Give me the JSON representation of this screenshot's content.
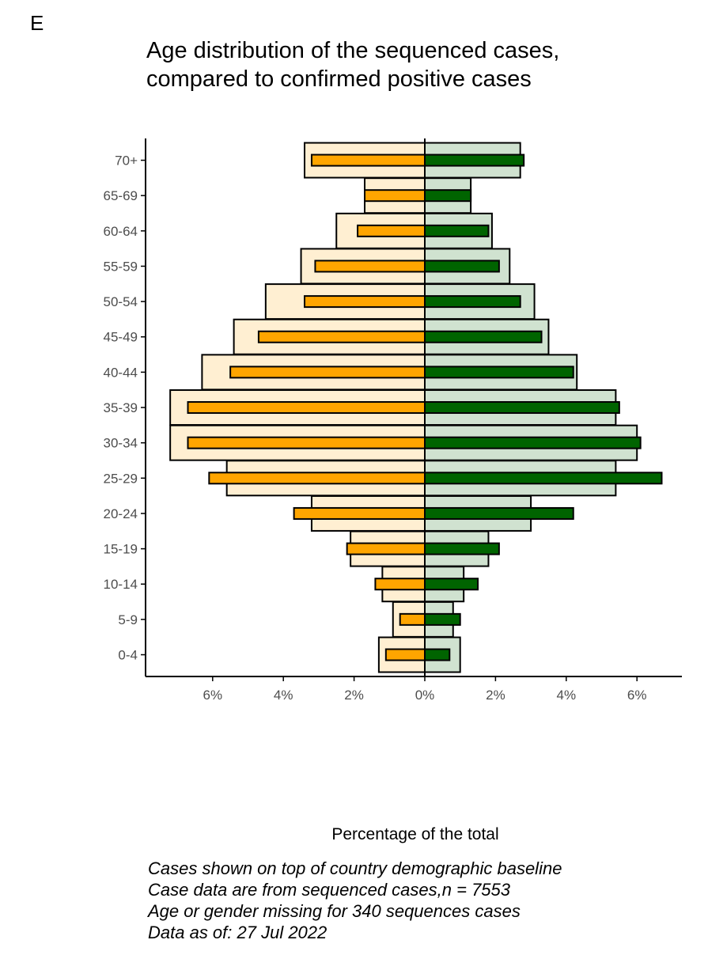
{
  "panel_label": "E",
  "chart_data": {
    "type": "bar",
    "orientation": "horizontal-population-pyramid",
    "title": [
      "Age distribution of the sequenced cases,",
      "compared to confirmed positive cases"
    ],
    "xlabel": "Percentage of the total",
    "ylabel": "",
    "categories": [
      "0-4",
      "5-9",
      "10-14",
      "15-19",
      "20-24",
      "25-29",
      "30-34",
      "35-39",
      "40-44",
      "45-49",
      "50-54",
      "55-59",
      "60-64",
      "65-69",
      "70+"
    ],
    "xlim": [
      -7.5,
      7.5
    ],
    "x_ticks": [
      -6,
      -4,
      -2,
      0,
      2,
      4,
      6
    ],
    "x_tick_labels": [
      "6%",
      "4%",
      "2%",
      "0%",
      "2%",
      "4%",
      "6%"
    ],
    "grid": false,
    "series": [
      {
        "side": "left",
        "role": "baseline",
        "color": "#FFEFD2",
        "values": [
          1.3,
          0.9,
          1.2,
          2.1,
          3.2,
          5.6,
          7.2,
          7.2,
          6.3,
          5.4,
          4.5,
          3.5,
          2.5,
          1.7,
          3.4
        ]
      },
      {
        "side": "right",
        "role": "baseline",
        "color": "#D0E2D0",
        "values": [
          1.0,
          0.8,
          1.1,
          1.8,
          3.0,
          5.4,
          6.0,
          5.4,
          4.3,
          3.5,
          3.1,
          2.4,
          1.9,
          1.3,
          2.7
        ]
      },
      {
        "side": "left",
        "role": "cases",
        "color": "#FFA500",
        "values": [
          1.1,
          0.7,
          1.4,
          2.2,
          3.7,
          6.1,
          6.7,
          6.7,
          5.5,
          4.7,
          3.4,
          3.1,
          1.9,
          1.7,
          3.2
        ]
      },
      {
        "side": "right",
        "role": "cases",
        "color": "#006400",
        "values": [
          0.7,
          1.0,
          1.5,
          2.1,
          4.2,
          6.7,
          6.1,
          5.5,
          4.2,
          3.3,
          2.7,
          2.1,
          1.8,
          1.3,
          2.8
        ]
      }
    ]
  },
  "caption": [
    "Cases shown on top of country demographic baseline",
    "Case data are from sequenced cases,n = 7553",
    "Age or gender missing for 340 sequences cases",
    "Data as of: 27 Jul 2022"
  ]
}
